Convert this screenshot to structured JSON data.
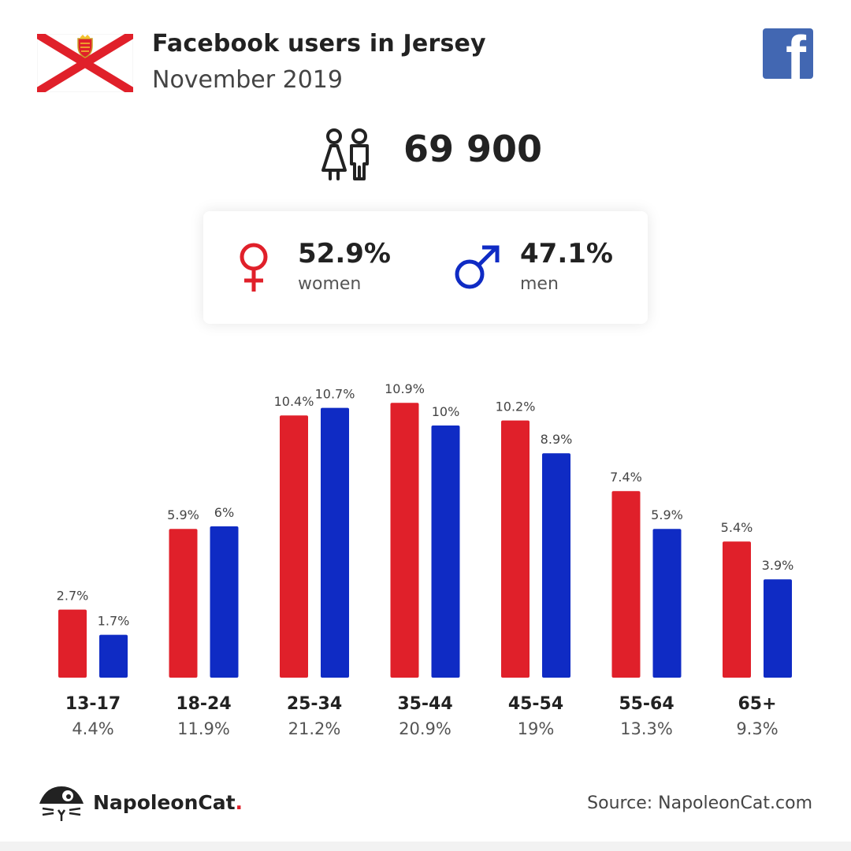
{
  "header": {
    "title": "Facebook users in Jersey",
    "subtitle": "November 2019"
  },
  "icons": {
    "flag": "jersey-flag-icon",
    "facebook": "facebook-logo-icon",
    "users": "users-icon",
    "female": "female-symbol-icon",
    "male": "male-symbol-icon",
    "brand": "napoleoncat-logo-icon"
  },
  "total_users": "69 900",
  "gender": {
    "women": {
      "percent": "52.9%",
      "label": "women"
    },
    "men": {
      "percent": "47.1%",
      "label": "men"
    }
  },
  "colors": {
    "women": "#e0202a",
    "men": "#0f2bc4",
    "facebook": "#4267b2",
    "flag_red": "#e0202a"
  },
  "chart_data": {
    "type": "bar",
    "categories": [
      "13-17",
      "18-24",
      "25-34",
      "35-44",
      "45-54",
      "55-64",
      "65+"
    ],
    "group_totals": [
      "4.4%",
      "11.9%",
      "21.2%",
      "20.9%",
      "19%",
      "13.3%",
      "9.3%"
    ],
    "series": [
      {
        "key": "women",
        "values": [
          2.7,
          5.9,
          10.4,
          10.9,
          10.2,
          7.4,
          5.4
        ],
        "labels": [
          "2.7%",
          "5.9%",
          "10.4%",
          "10.9%",
          "10.2%",
          "7.4%",
          "5.4%"
        ],
        "color": "#e0202a"
      },
      {
        "key": "men",
        "values": [
          1.7,
          6.0,
          10.7,
          10.0,
          8.9,
          5.9,
          3.9
        ],
        "labels": [
          "1.7%",
          "6%",
          "10.7%",
          "10%",
          "8.9%",
          "5.9%",
          "3.9%"
        ],
        "color": "#0f2bc4"
      }
    ],
    "unit": "%",
    "grid": false,
    "legend": "none"
  },
  "footer": {
    "brand_name": "NapoleonCat",
    "brand_dot": ".",
    "source": "Source: NapoleonCat.com"
  }
}
